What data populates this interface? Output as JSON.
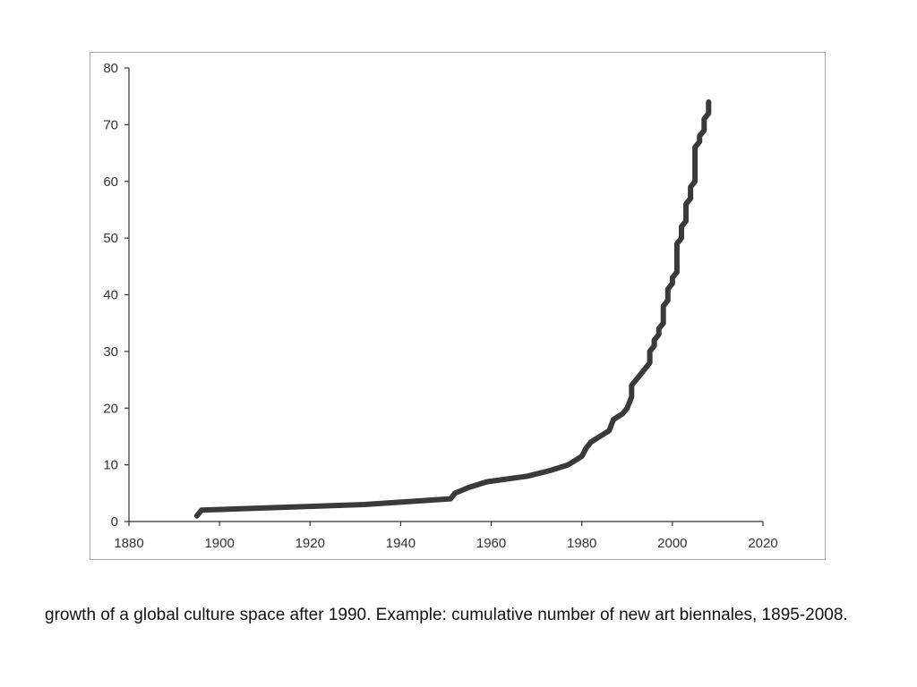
{
  "caption": "growth of a global culture space after 1990. Example: cumulative number of new art biennales, 1895-2008.",
  "chart_data": {
    "type": "line",
    "title": "",
    "xlabel": "",
    "ylabel": "",
    "xlim": [
      1880,
      2020
    ],
    "ylim": [
      0,
      80
    ],
    "x_ticks": [
      1880,
      1900,
      1920,
      1940,
      1960,
      1980,
      2000,
      2020
    ],
    "y_ticks": [
      0,
      10,
      20,
      30,
      40,
      50,
      60,
      70,
      80
    ],
    "x_tick_labels": [
      "1880",
      "1900",
      "1920",
      "1940",
      "1960",
      "1980",
      "2000",
      "2020"
    ],
    "y_tick_labels": [
      "0",
      "10",
      "20",
      "30",
      "40",
      "50",
      "60",
      "70",
      "80"
    ],
    "grid": false,
    "line_color": "#3a3a3a",
    "series": [
      {
        "points": [
          [
            1895,
            1
          ],
          [
            1896,
            2
          ],
          [
            1932,
            3
          ],
          [
            1951,
            4
          ],
          [
            1952,
            5
          ],
          [
            1955,
            6
          ],
          [
            1959,
            7
          ],
          [
            1968,
            8
          ],
          [
            1973,
            9
          ],
          [
            1977,
            10
          ],
          [
            1980,
            11.5
          ],
          [
            1981,
            13
          ],
          [
            1982,
            14
          ],
          [
            1984,
            15
          ],
          [
            1986,
            16
          ],
          [
            1987,
            18
          ],
          [
            1989,
            19
          ],
          [
            1990,
            20
          ],
          [
            1991,
            22
          ],
          [
            1991,
            24
          ],
          [
            1992,
            25
          ],
          [
            1993,
            26
          ],
          [
            1995,
            28
          ],
          [
            1995,
            30
          ],
          [
            1996,
            31
          ],
          [
            1996,
            32
          ],
          [
            1997,
            33
          ],
          [
            1997,
            34
          ],
          [
            1998,
            35
          ],
          [
            1998,
            38
          ],
          [
            1999,
            39
          ],
          [
            1999,
            41
          ],
          [
            2000,
            42
          ],
          [
            2000,
            43
          ],
          [
            2001,
            44
          ],
          [
            2001,
            49
          ],
          [
            2002,
            50
          ],
          [
            2002,
            52
          ],
          [
            2003,
            53
          ],
          [
            2003,
            56
          ],
          [
            2004,
            57
          ],
          [
            2004,
            59
          ],
          [
            2005,
            60
          ],
          [
            2005,
            66
          ],
          [
            2006,
            67
          ],
          [
            2006,
            68
          ],
          [
            2007,
            69
          ],
          [
            2007,
            71
          ],
          [
            2008,
            72
          ],
          [
            2008,
            74
          ]
        ]
      }
    ]
  }
}
